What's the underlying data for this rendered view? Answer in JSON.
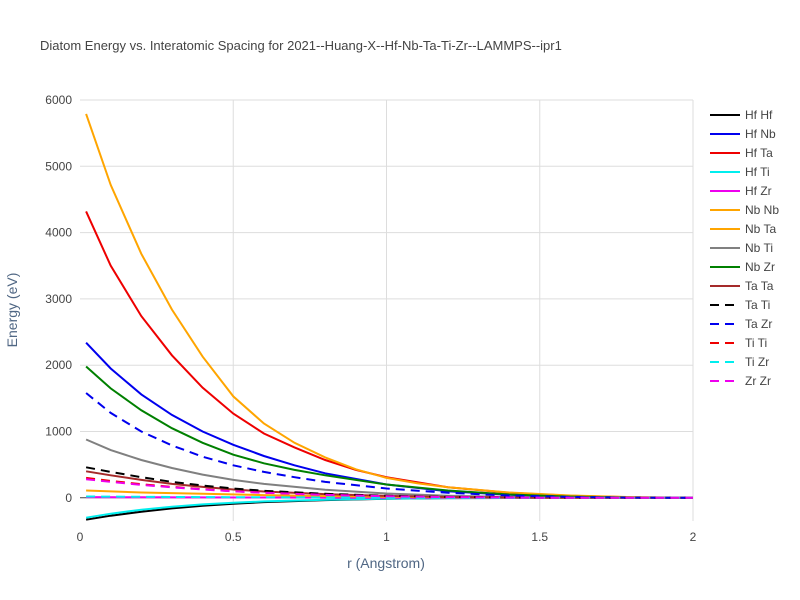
{
  "chart_data": {
    "type": "line",
    "title": "Diatom Energy vs. Interatomic Spacing for 2021--Huang-X--Hf-Nb-Ta-Ti-Zr--LAMMPS--ipr1",
    "xlabel": "r (Angstrom)",
    "ylabel": "Energy (eV)",
    "xlim": [
      0,
      2
    ],
    "ylim": [
      -350,
      6000
    ],
    "xticks": [
      0,
      0.5,
      1,
      1.5,
      2
    ],
    "xtick_labels": [
      "0",
      "0.5",
      "1",
      "1.5",
      "2"
    ],
    "yticks": [
      0,
      1000,
      2000,
      3000,
      4000,
      5000,
      6000
    ],
    "ytick_labels": [
      "0",
      "1000",
      "2000",
      "3000",
      "4000",
      "5000",
      "6000"
    ],
    "grid": true,
    "legend_position": "right",
    "series": [
      {
        "name": "Hf Hf",
        "color": "#000000",
        "dash": "solid",
        "x": [
          0.02,
          0.1,
          0.2,
          0.3,
          0.4,
          0.5,
          0.6,
          0.8,
          1.0,
          1.2,
          1.5,
          2.0
        ],
        "y": [
          -330,
          -270,
          -210,
          -160,
          -120,
          -90,
          -65,
          -35,
          -15,
          -5,
          -1,
          0
        ]
      },
      {
        "name": "Hf Nb",
        "color": "#0000ee",
        "dash": "solid",
        "x": [
          0.02,
          0.1,
          0.2,
          0.3,
          0.4,
          0.5,
          0.6,
          0.7,
          0.8,
          1.0,
          1.2,
          1.4,
          1.6,
          1.8,
          2.0
        ],
        "y": [
          2340,
          1950,
          1560,
          1250,
          1000,
          800,
          630,
          490,
          370,
          200,
          100,
          45,
          15,
          4,
          0
        ]
      },
      {
        "name": "Hf Ta",
        "color": "#ee0000",
        "dash": "solid",
        "x": [
          0.02,
          0.1,
          0.2,
          0.3,
          0.4,
          0.5,
          0.6,
          0.7,
          0.8,
          0.9,
          1.0,
          1.2,
          1.4,
          1.6,
          1.8,
          2.0
        ],
        "y": [
          4320,
          3500,
          2740,
          2150,
          1660,
          1270,
          970,
          760,
          570,
          420,
          310,
          160,
          75,
          30,
          8,
          0
        ]
      },
      {
        "name": "Hf Ti",
        "color": "#00eeee",
        "dash": "solid",
        "x": [
          0.02,
          0.1,
          0.2,
          0.3,
          0.4,
          0.5,
          0.6,
          0.8,
          1.0,
          1.2,
          1.5,
          2.0
        ],
        "y": [
          -300,
          -240,
          -180,
          -135,
          -100,
          -75,
          -55,
          -30,
          -12,
          -4,
          -1,
          0
        ]
      },
      {
        "name": "Hf Zr",
        "color": "#ee00ee",
        "dash": "solid",
        "x": [
          0.02,
          0.2,
          0.4,
          0.6,
          0.8,
          1.0,
          1.2,
          1.5,
          2.0
        ],
        "y": [
          10,
          8,
          6,
          4,
          3,
          2,
          1,
          0,
          0
        ]
      },
      {
        "name": "Nb Nb",
        "color": "#ffa500",
        "dash": "solid",
        "x": [
          0.02,
          0.2,
          0.4,
          0.6,
          0.8,
          1.0,
          1.2,
          1.5,
          2.0
        ],
        "y": [
          110,
          80,
          60,
          40,
          25,
          15,
          8,
          2,
          0
        ]
      },
      {
        "name": "Nb Ta",
        "color": "#ffa500",
        "dash": "solid",
        "x": [
          0.02,
          0.1,
          0.2,
          0.3,
          0.4,
          0.5,
          0.6,
          0.7,
          0.8,
          0.9,
          1.0,
          1.1,
          1.2,
          1.4,
          1.6,
          1.8,
          2.0
        ],
        "y": [
          5790,
          4720,
          3680,
          2840,
          2130,
          1530,
          1120,
          830,
          610,
          430,
          300,
          220,
          160,
          80,
          35,
          10,
          0
        ]
      },
      {
        "name": "Nb Ti",
        "color": "#808080",
        "dash": "solid",
        "x": [
          0.02,
          0.1,
          0.2,
          0.3,
          0.4,
          0.5,
          0.6,
          0.8,
          1.0,
          1.2,
          1.4,
          1.6,
          2.0
        ],
        "y": [
          880,
          720,
          570,
          450,
          350,
          270,
          210,
          120,
          65,
          30,
          12,
          4,
          0
        ]
      },
      {
        "name": "Nb Zr",
        "color": "#008000",
        "dash": "solid",
        "x": [
          0.02,
          0.1,
          0.2,
          0.3,
          0.4,
          0.5,
          0.6,
          0.7,
          0.8,
          1.0,
          1.2,
          1.4,
          1.6,
          1.8,
          2.0
        ],
        "y": [
          1980,
          1650,
          1320,
          1050,
          830,
          650,
          520,
          420,
          340,
          200,
          110,
          50,
          18,
          5,
          0
        ]
      },
      {
        "name": "Ta Ta",
        "color": "#a52a2a",
        "dash": "solid",
        "x": [
          0.02,
          0.1,
          0.2,
          0.3,
          0.4,
          0.5,
          0.6,
          0.8,
          1.0,
          1.2,
          1.5,
          2.0
        ],
        "y": [
          400,
          340,
          270,
          210,
          165,
          125,
          95,
          55,
          28,
          12,
          3,
          0
        ]
      },
      {
        "name": "Ta Ti",
        "color": "#000000",
        "dash": "dash",
        "x": [
          0.02,
          0.1,
          0.2,
          0.3,
          0.4,
          0.5,
          0.6,
          0.8,
          1.0,
          1.2,
          1.5,
          2.0
        ],
        "y": [
          460,
          390,
          310,
          240,
          185,
          140,
          105,
          60,
          30,
          13,
          3,
          0
        ]
      },
      {
        "name": "Ta Zr",
        "color": "#0000ee",
        "dash": "dash",
        "x": [
          0.02,
          0.1,
          0.2,
          0.3,
          0.4,
          0.5,
          0.6,
          0.7,
          0.8,
          1.0,
          1.2,
          1.4,
          1.6,
          1.8,
          2.0
        ],
        "y": [
          1580,
          1280,
          1000,
          790,
          620,
          490,
          390,
          310,
          240,
          140,
          75,
          35,
          12,
          3,
          0
        ]
      },
      {
        "name": "Ti Ti",
        "color": "#ee0000",
        "dash": "dash",
        "x": [
          0.02,
          0.1,
          0.2,
          0.3,
          0.4,
          0.5,
          0.6,
          0.8,
          1.0,
          1.2,
          1.5,
          2.0
        ],
        "y": [
          300,
          255,
          205,
          165,
          130,
          100,
          78,
          45,
          22,
          10,
          2,
          0
        ]
      },
      {
        "name": "Ti Zr",
        "color": "#00eeee",
        "dash": "dash",
        "x": [
          0.02,
          0.2,
          0.4,
          0.6,
          0.8,
          1.0,
          1.2,
          1.5,
          2.0
        ],
        "y": [
          20,
          15,
          10,
          7,
          4,
          2,
          1,
          0,
          0
        ]
      },
      {
        "name": "Zr Zr",
        "color": "#ee00ee",
        "dash": "dash",
        "x": [
          0.02,
          0.1,
          0.2,
          0.3,
          0.4,
          0.5,
          0.6,
          0.8,
          1.0,
          1.2,
          1.5,
          2.0
        ],
        "y": [
          280,
          240,
          195,
          158,
          125,
          98,
          75,
          44,
          22,
          10,
          2,
          0
        ]
      }
    ]
  }
}
